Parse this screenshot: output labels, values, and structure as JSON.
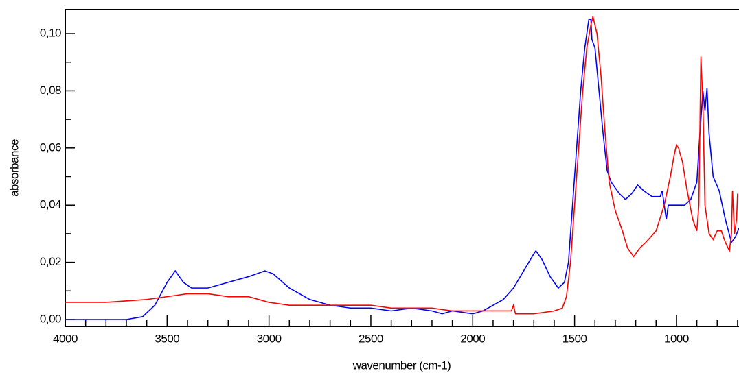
{
  "chart_data": {
    "type": "line",
    "x_label": "wavenumber (cm-1)",
    "y_label": "absorbance",
    "xlim": [
      4000,
      693
    ],
    "ylim": [
      -0.0024,
      0.1084
    ],
    "xticks": [
      4000,
      3500,
      3000,
      2500,
      2000,
      1500,
      1000
    ],
    "xminorticks": [
      3900,
      3800,
      3700,
      3600,
      3400,
      3300,
      3200,
      3100,
      2900,
      2800,
      2700,
      2600,
      2400,
      2300,
      2200,
      2100,
      1900,
      1800,
      1700,
      1600,
      1400,
      1300,
      1200,
      1100,
      900,
      800,
      700
    ],
    "yticks": [
      {
        "value": 0,
        "label": "0,00"
      },
      {
        "value": 0.02,
        "label": "0,02"
      },
      {
        "value": 0.04,
        "label": "0,04"
      },
      {
        "value": 0.06,
        "label": "0,06"
      },
      {
        "value": 0.08,
        "label": "0,08"
      },
      {
        "value": 0.1,
        "label": "0,10"
      }
    ],
    "yminorticks": [
      0.01,
      0.03,
      0.05,
      0.07,
      0.09
    ],
    "series": [
      {
        "color": "#0000ff",
        "x": [
          4000,
          3700,
          3620,
          3560,
          3500,
          3460,
          3420,
          3380,
          3300,
          3200,
          3100,
          3020,
          2980,
          2900,
          2800,
          2700,
          2600,
          2500,
          2400,
          2300,
          2200,
          2150,
          2100,
          2000,
          1950,
          1900,
          1850,
          1800,
          1750,
          1700,
          1690,
          1660,
          1620,
          1580,
          1550,
          1530,
          1510,
          1490,
          1470,
          1450,
          1430,
          1420,
          1415,
          1400,
          1380,
          1360,
          1340,
          1320,
          1280,
          1250,
          1220,
          1190,
          1160,
          1120,
          1080,
          1070,
          1050,
          1040,
          1000,
          960,
          930,
          900,
          885,
          870,
          860,
          850,
          840,
          820,
          790,
          760,
          730,
          710,
          693
        ],
        "values": [
          0.0,
          0.0,
          0.001,
          0.005,
          0.013,
          0.017,
          0.013,
          0.011,
          0.011,
          0.013,
          0.015,
          0.017,
          0.016,
          0.011,
          0.007,
          0.005,
          0.004,
          0.004,
          0.003,
          0.004,
          0.003,
          0.002,
          0.003,
          0.002,
          0.003,
          0.005,
          0.007,
          0.011,
          0.017,
          0.023,
          0.024,
          0.021,
          0.015,
          0.011,
          0.013,
          0.02,
          0.04,
          0.06,
          0.08,
          0.095,
          0.105,
          0.105,
          0.098,
          0.095,
          0.08,
          0.065,
          0.052,
          0.048,
          0.044,
          0.042,
          0.044,
          0.047,
          0.045,
          0.043,
          0.043,
          0.045,
          0.035,
          0.04,
          0.04,
          0.04,
          0.042,
          0.048,
          0.065,
          0.08,
          0.073,
          0.081,
          0.065,
          0.05,
          0.045,
          0.035,
          0.027,
          0.029,
          0.032
        ]
      },
      {
        "color": "#ff0000",
        "x": [
          4000,
          3800,
          3600,
          3500,
          3400,
          3300,
          3200,
          3100,
          3000,
          2900,
          2700,
          2500,
          2400,
          2300,
          2200,
          2100,
          2000,
          1900,
          1810,
          1800,
          1790,
          1700,
          1600,
          1560,
          1540,
          1520,
          1500,
          1480,
          1460,
          1440,
          1420,
          1410,
          1390,
          1370,
          1350,
          1330,
          1300,
          1270,
          1240,
          1210,
          1180,
          1150,
          1100,
          1060,
          1030,
          1010,
          1000,
          990,
          970,
          950,
          920,
          900,
          890,
          880,
          870,
          860,
          840,
          820,
          800,
          780,
          760,
          740,
          730,
          725,
          715,
          705,
          700
        ],
        "values": [
          0.006,
          0.006,
          0.007,
          0.008,
          0.009,
          0.009,
          0.008,
          0.008,
          0.006,
          0.005,
          0.005,
          0.005,
          0.004,
          0.004,
          0.004,
          0.003,
          0.003,
          0.003,
          0.003,
          0.005,
          0.002,
          0.002,
          0.003,
          0.004,
          0.008,
          0.02,
          0.04,
          0.06,
          0.08,
          0.095,
          0.103,
          0.106,
          0.1,
          0.085,
          0.065,
          0.048,
          0.038,
          0.032,
          0.025,
          0.022,
          0.025,
          0.027,
          0.031,
          0.04,
          0.05,
          0.058,
          0.061,
          0.06,
          0.055,
          0.046,
          0.035,
          0.031,
          0.04,
          0.092,
          0.075,
          0.04,
          0.03,
          0.028,
          0.031,
          0.031,
          0.027,
          0.024,
          0.03,
          0.045,
          0.03,
          0.035,
          0.044
        ]
      }
    ]
  }
}
